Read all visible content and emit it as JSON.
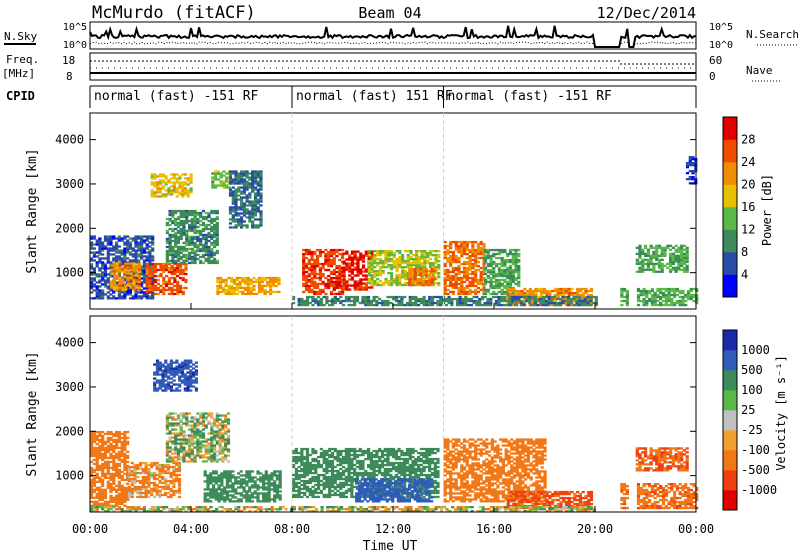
{
  "header": {
    "station": "McMurdo (fitACF)",
    "beam": "Beam 04",
    "date": "12/Dec/2014"
  },
  "status_panel": {
    "nsky_label": "N.Sky",
    "nsky_ticks": [
      "10^5",
      "10^0"
    ],
    "nsearch_label": "N.Search",
    "nsearch_ticks": [
      "10^5",
      "10^0"
    ],
    "freq_label_1": "Freq.",
    "freq_label_2": "[MHz]",
    "freq_ticks": [
      "18",
      "8"
    ],
    "nave_label": "Nave",
    "nave_ticks": [
      "60",
      "0"
    ],
    "cpid_label": "CPID",
    "cpid_segments": [
      {
        "label": "normal (fast) -151 RF",
        "start_hour": 0,
        "end_hour": 8
      },
      {
        "label": "normal (fast) 151 RF",
        "start_hour": 8,
        "end_hour": 14
      },
      {
        "label": "normal (fast) -151 RF",
        "start_hour": 14,
        "end_hour": 24
      }
    ],
    "data_gaps_hours": [
      [
        20.0,
        21.0
      ],
      [
        21.3,
        21.6
      ]
    ]
  },
  "power_panel": {
    "colorbar_label": "Power [dB]",
    "colorbar_ticks": [
      "28",
      "24",
      "20",
      "16",
      "12",
      "8",
      "4"
    ],
    "colors": [
      "#0000ff",
      "#2a4ca8",
      "#3d8a5a",
      "#5ab848",
      "#e8c000",
      "#f08c00",
      "#f04c00",
      "#e00000"
    ]
  },
  "velocity_panel": {
    "colorbar_label": "Velocity [m s⁻¹]",
    "colorbar_ticks": [
      "1000",
      "500",
      "100",
      "25",
      "-25",
      "-100",
      "-500",
      "-1000"
    ],
    "colors": [
      "#1a2aa8",
      "#2e5cb8",
      "#3d8a5a",
      "#5ab848",
      "#c0c0c0",
      "#f0a030",
      "#f07818",
      "#f04010",
      "#e00000"
    ]
  },
  "axes": {
    "ylabel": "Slant Range [km]",
    "xlabel": "Time UT",
    "y_ticks": [
      "4000",
      "3000",
      "2000",
      "1000"
    ],
    "x_ticks": [
      "00:00",
      "04:00",
      "08:00",
      "12:00",
      "16:00",
      "20:00",
      "00:00"
    ]
  },
  "chart_data": [
    {
      "type": "heatmap",
      "name": "power",
      "title": "",
      "xlabel": "Time UT",
      "ylabel": "Slant Range [km]",
      "xlim": [
        0,
        24
      ],
      "ylim": [
        180,
        4600
      ],
      "zlabel": "Power [dB]",
      "zlim": [
        0,
        32
      ],
      "grid": false,
      "blobs": [
        {
          "t": [
            0.0,
            2.5
          ],
          "r": [
            400,
            1800
          ],
          "z": 6
        },
        {
          "t": [
            0.8,
            2.0
          ],
          "r": [
            600,
            1200
          ],
          "z": 22
        },
        {
          "t": [
            2.2,
            3.8
          ],
          "r": [
            500,
            1200
          ],
          "z": 26
        },
        {
          "t": [
            3.0,
            5.0
          ],
          "r": [
            1200,
            2400
          ],
          "z": 10
        },
        {
          "t": [
            2.4,
            4.0
          ],
          "r": [
            2700,
            3200
          ],
          "z": 18
        },
        {
          "t": [
            4.8,
            5.5
          ],
          "r": [
            2900,
            3300
          ],
          "z": 14
        },
        {
          "t": [
            5.5,
            6.8
          ],
          "r": [
            2000,
            3300
          ],
          "z": 8
        },
        {
          "t": [
            5.0,
            7.5
          ],
          "r": [
            500,
            900
          ],
          "z": 20
        },
        {
          "t": [
            8.4,
            10.0
          ],
          "r": [
            500,
            1500
          ],
          "z": 27
        },
        {
          "t": [
            10.0,
            11.2
          ],
          "r": [
            600,
            1500
          ],
          "z": 29
        },
        {
          "t": [
            11.0,
            13.8
          ],
          "r": [
            700,
            1500
          ],
          "z": 16
        },
        {
          "t": [
            12.6,
            13.6
          ],
          "r": [
            700,
            1100
          ],
          "z": 24
        },
        {
          "t": [
            14.0,
            15.6
          ],
          "r": [
            500,
            1700
          ],
          "z": 24
        },
        {
          "t": [
            15.6,
            17.0
          ],
          "r": [
            500,
            1500
          ],
          "z": 12
        },
        {
          "t": [
            16.5,
            19.8
          ],
          "r": [
            250,
            650
          ],
          "z": 22
        },
        {
          "t": [
            8.0,
            20.0
          ],
          "r": [
            250,
            450
          ],
          "z": 9
        },
        {
          "t": [
            21.0,
            24.0
          ],
          "r": [
            250,
            650
          ],
          "z": 13
        },
        {
          "t": [
            21.5,
            23.6
          ],
          "r": [
            1000,
            1600
          ],
          "z": 12
        },
        {
          "t": [
            23.6,
            24.0
          ],
          "r": [
            3000,
            3600
          ],
          "z": 5
        }
      ]
    },
    {
      "type": "heatmap",
      "name": "velocity",
      "title": "",
      "xlabel": "Time UT",
      "ylabel": "Slant Range [km]",
      "xlim": [
        0,
        24
      ],
      "ylim": [
        180,
        4600
      ],
      "zlabel": "Velocity [m s⁻¹]",
      "zlim": [
        -1000,
        1000
      ],
      "grid": false,
      "blobs": [
        {
          "t": [
            0.0,
            1.5
          ],
          "r": [
            300,
            2000
          ],
          "z": -300
        },
        {
          "t": [
            1.5,
            3.5
          ],
          "r": [
            500,
            1300
          ],
          "z": -150
        },
        {
          "t": [
            2.5,
            4.2
          ],
          "r": [
            2900,
            3600
          ],
          "z": 900
        },
        {
          "t": [
            3.0,
            5.5
          ],
          "r": [
            1300,
            2400
          ],
          "z": 60
        },
        {
          "t": [
            4.5,
            7.5
          ],
          "r": [
            400,
            1100
          ],
          "z": 300
        },
        {
          "t": [
            8.0,
            13.8
          ],
          "r": [
            500,
            1600
          ],
          "z": 300
        },
        {
          "t": [
            10.5,
            13.5
          ],
          "r": [
            400,
            900
          ],
          "z": 800
        },
        {
          "t": [
            14.0,
            18.0
          ],
          "r": [
            400,
            1800
          ],
          "z": -300
        },
        {
          "t": [
            16.5,
            19.8
          ],
          "r": [
            250,
            650
          ],
          "z": -600
        },
        {
          "t": [
            0.0,
            20.0
          ],
          "r": [
            180,
            300
          ],
          "z": 0
        },
        {
          "t": [
            21.0,
            24.0
          ],
          "r": [
            250,
            800
          ],
          "z": -400
        },
        {
          "t": [
            21.5,
            23.6
          ],
          "r": [
            1100,
            1600
          ],
          "z": -500
        }
      ]
    }
  ]
}
